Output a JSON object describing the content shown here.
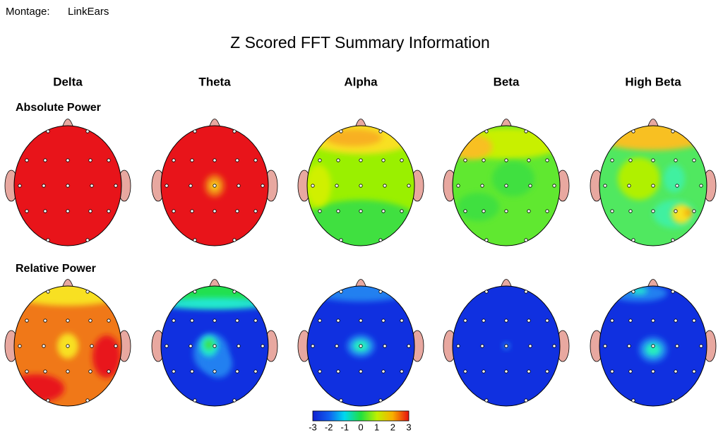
{
  "header": {
    "montage_label": "Montage:",
    "montage": "LinkEars",
    "title": "Z Scored FFT Summary Information"
  },
  "bands": [
    "Delta",
    "Theta",
    "Alpha",
    "Beta",
    "High Beta"
  ],
  "rows": [
    "Absolute Power",
    "Relative Power"
  ],
  "colorbar": {
    "ticks": [
      -3,
      -2,
      -1,
      0,
      1,
      2,
      3
    ]
  }
}
